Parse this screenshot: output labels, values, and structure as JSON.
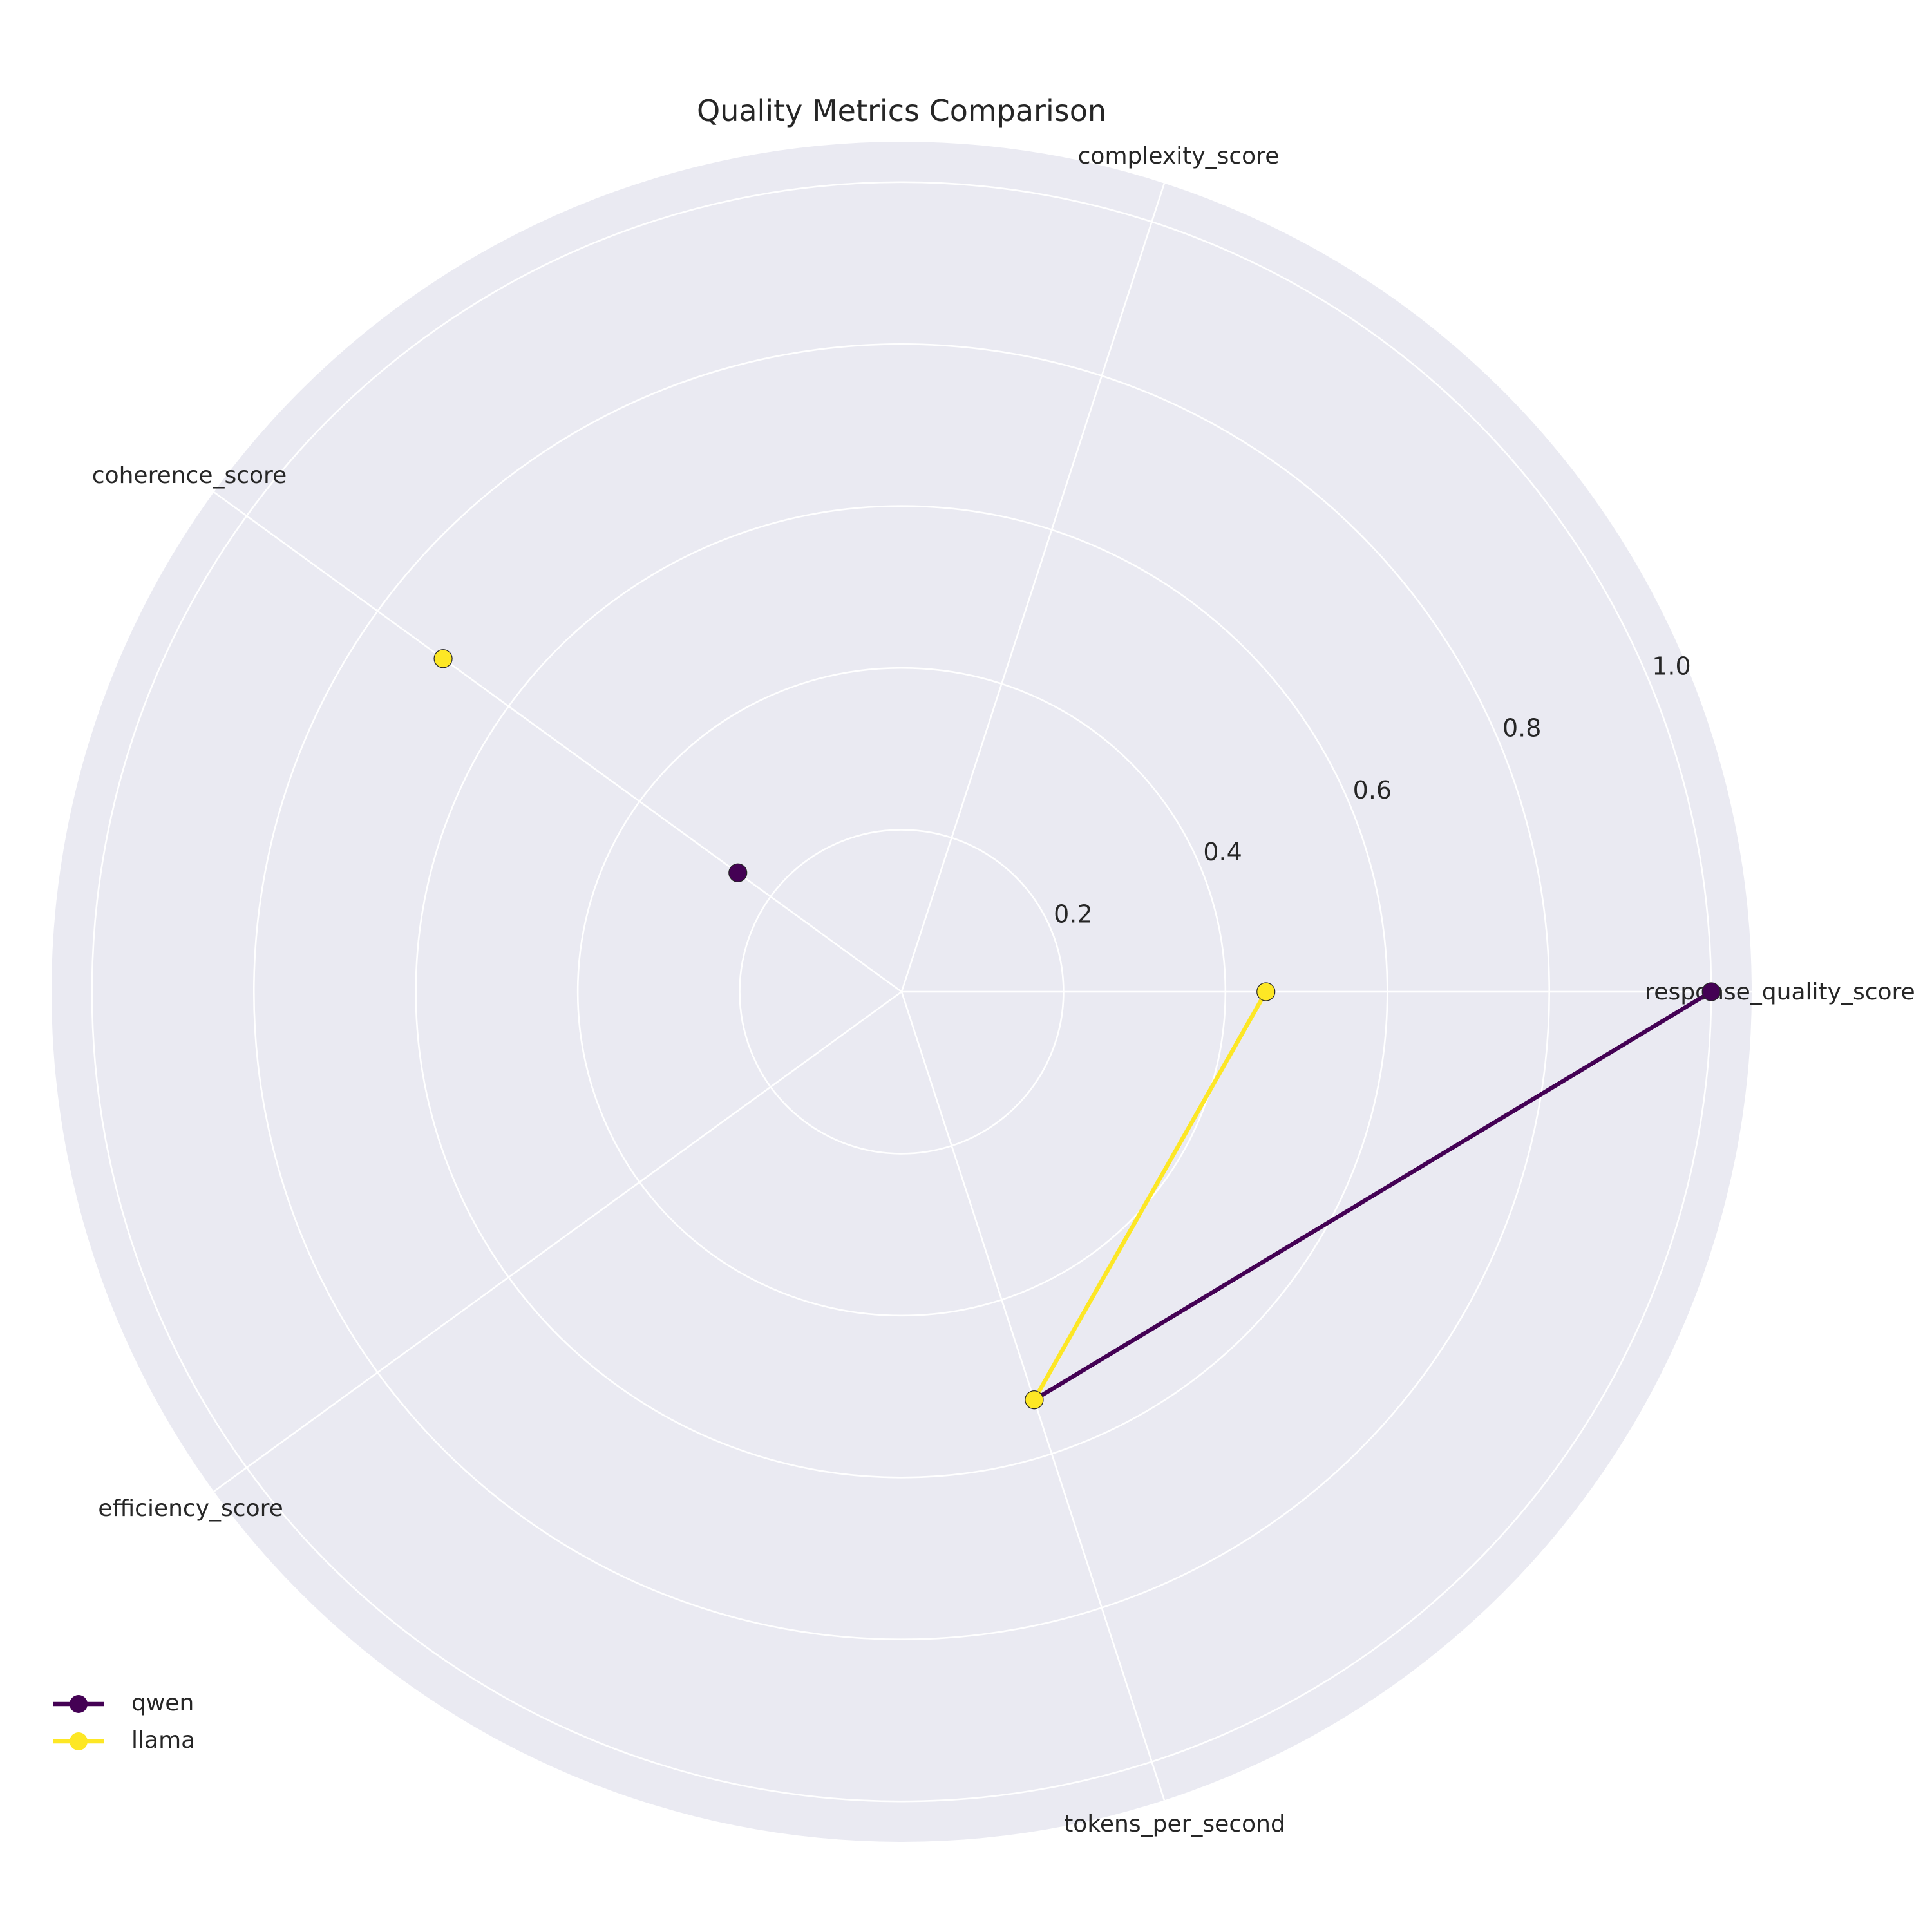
{
  "chart_data": {
    "type": "radar",
    "title": "Quality Metrics Comparison",
    "categories": [
      "response_quality_score",
      "complexity_score",
      "coherence_score",
      "efficiency_score",
      "tokens_per_second"
    ],
    "radial_ticks": [
      "0.2",
      "0.4",
      "0.6",
      "0.8",
      "1.0"
    ],
    "rlim": [
      0,
      1.05
    ],
    "grid": true,
    "legend_position": "lower-left",
    "series": [
      {
        "name": "qwen",
        "color": "#440154",
        "values": [
          1.0,
          0.0,
          0.25,
          0.0,
          0.53
        ]
      },
      {
        "name": "llama",
        "color": "#fde725",
        "values": [
          0.45,
          0.0,
          0.7,
          0.0,
          0.53
        ]
      }
    ],
    "background_color": "#eaeaf2",
    "grid_color": "#ffffff"
  }
}
